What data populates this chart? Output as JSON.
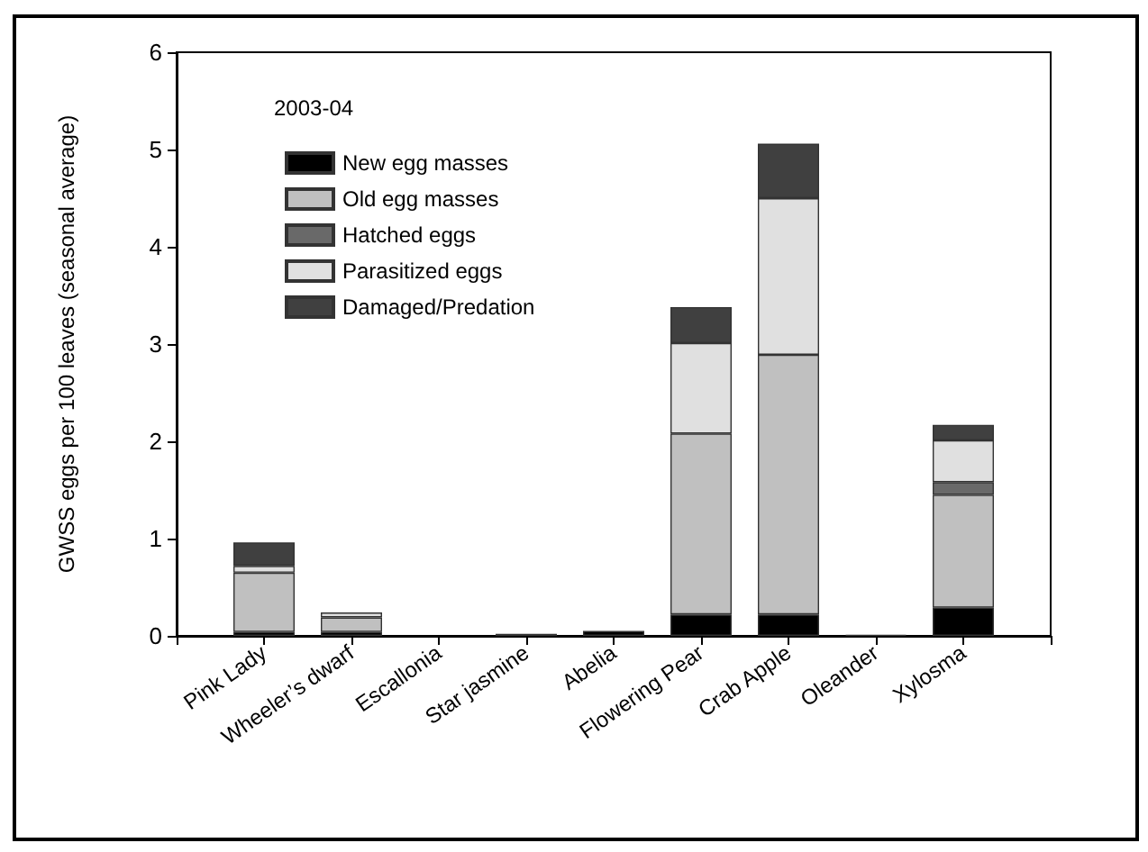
{
  "chart_data": {
    "type": "bar",
    "stacked": true,
    "title": "2003-04",
    "ylabel": "GWSS eggs per 100 leaves (seasonal average)",
    "categories": [
      "Pink Lady",
      "Wheeler’s dwarf",
      "Escallonia",
      "Star jasmine",
      "Abelia",
      "Flowering Pear",
      "Crab Apple",
      "Oleander",
      "Xylosma"
    ],
    "series": [
      {
        "name": "New egg masses",
        "color": "#000000",
        "values": [
          0.04,
          0.04,
          0,
          0.02,
          0.05,
          0.22,
          0.22,
          0.01,
          0.29
        ]
      },
      {
        "name": "Old egg masses",
        "color": "#c0c0c0",
        "values": [
          0.61,
          0.15,
          0,
          0,
          0,
          1.86,
          2.67,
          0,
          1.16
        ]
      },
      {
        "name": "Hatched eggs",
        "color": "#696969",
        "values": [
          0,
          0,
          0,
          0,
          0,
          0,
          0,
          0,
          0.13
        ]
      },
      {
        "name": "Parasitized eggs",
        "color": "#e0e0e0",
        "values": [
          0.07,
          0.05,
          0,
          0,
          0,
          0.93,
          1.61,
          0,
          0.43
        ]
      },
      {
        "name": "Damaged/Predation",
        "color": "#404040",
        "values": [
          0.24,
          0,
          0,
          0,
          0,
          0.37,
          0.56,
          0,
          0.16
        ]
      }
    ],
    "ylim": [
      0,
      6
    ],
    "yticks": [
      0,
      1,
      2,
      3,
      4,
      5,
      6
    ],
    "legend": "top left"
  }
}
